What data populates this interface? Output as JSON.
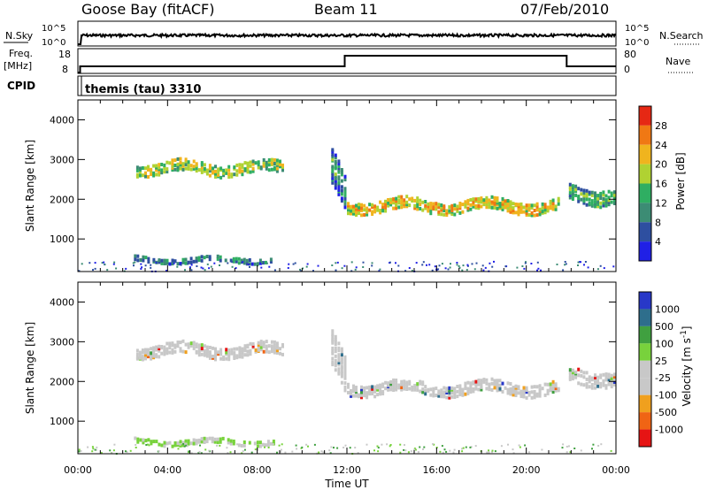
{
  "header": {
    "station": "Goose Bay (fitACF)",
    "beam": "Beam 11",
    "date": "07/Feb/2010"
  },
  "left_labels": {
    "nsky": "N.Sky",
    "freq": "Freq.",
    "freq_unit": "[MHz]",
    "cpid": "CPID"
  },
  "right_labels": {
    "nsearch": "N.Search",
    "nave": "Nave"
  },
  "noise_axis": {
    "top": "10^5",
    "bottom": "10^0"
  },
  "freq_axis": {
    "top": "18",
    "bottom": "8"
  },
  "nave_axis": {
    "top": "80",
    "bottom": "0"
  },
  "cpid_text": "themis (tau) 3310",
  "colors": {
    "power": [
      "#2020e6",
      "#2e4fa0",
      "#3c8c74",
      "#2fae62",
      "#b0d232",
      "#f0b41e",
      "#f07814",
      "#e62814"
    ],
    "velocity": [
      "#e61414",
      "#f06414",
      "#f0a01e",
      "#c8c8c8",
      "#c8c8c8",
      "#78d23c",
      "#40a040",
      "#2e6e8c",
      "#2838c8"
    ]
  },
  "chart_data": [
    {
      "type": "heatmap",
      "name": "power",
      "ylabel": "Slant Range [km]",
      "colorbar_label": "Power [dB]",
      "colorbar_ticks": [
        "28",
        "24",
        "20",
        "16",
        "12",
        "8",
        "4"
      ],
      "ylim": [
        180,
        4500
      ],
      "yticks": [
        "1000",
        "2000",
        "3000",
        "4000"
      ],
      "xticks": [
        "00:00",
        "04:00",
        "08:00",
        "12:00",
        "16:00",
        "20:00",
        "00:00"
      ],
      "xlim_hours": [
        0,
        24
      ],
      "regions": [
        {
          "t": [
            2.6,
            9.2
          ],
          "r_center": 2850,
          "r_width": 300,
          "value": 18
        },
        {
          "t": [
            11.3,
            12.0
          ],
          "r_center": 2600,
          "r_width": 900,
          "value": 14
        },
        {
          "t": [
            12.0,
            21.5
          ],
          "r_center": 1900,
          "r_width": 300,
          "value": 22
        },
        {
          "t": [
            21.9,
            24.0
          ],
          "r_center": 2200,
          "r_width": 400,
          "value": 14
        },
        {
          "t": [
            2.5,
            8.8
          ],
          "r_center": 550,
          "r_width": 150,
          "value": 10
        }
      ]
    },
    {
      "type": "heatmap",
      "name": "velocity",
      "ylabel": "Slant Range [km]",
      "colorbar_label": "Velocity [m s^-1]",
      "colorbar_ticks": [
        "1000",
        "500",
        "100",
        "25",
        "-25",
        "-100",
        "-500",
        "-1000"
      ],
      "ylim": [
        180,
        4500
      ],
      "yticks": [
        "1000",
        "2000",
        "3000",
        "4000"
      ],
      "xticks": [
        "00:00",
        "04:00",
        "08:00",
        "12:00",
        "16:00",
        "20:00",
        "00:00"
      ],
      "xlabel": "Time UT",
      "xlim_hours": [
        0,
        24
      ]
    }
  ],
  "cpid_change": {
    "freq_step_hours": [
      11.9,
      21.8
    ]
  }
}
